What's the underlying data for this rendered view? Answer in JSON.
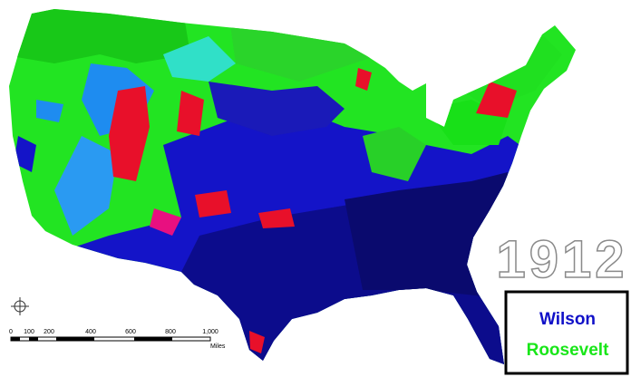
{
  "map": {
    "year": "1912",
    "legend": [
      {
        "name": "Wilson",
        "color": "#1010c8"
      },
      {
        "name": "Roosevelt",
        "color": "#19e619"
      }
    ],
    "scale": {
      "labels": [
        "0",
        "100",
        "200",
        "400",
        "600",
        "800",
        "1,000"
      ],
      "unit": "Miles"
    }
  }
}
